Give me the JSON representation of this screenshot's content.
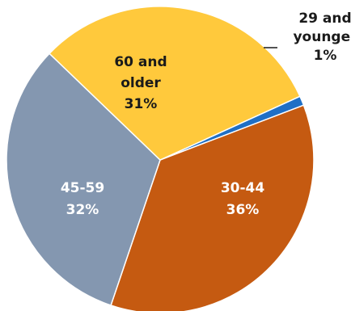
{
  "chart_data": {
    "type": "pie",
    "categories": [
      "29 and younger",
      "30-44",
      "45-59",
      "60 and older"
    ],
    "values": [
      1,
      36,
      32,
      31
    ],
    "colors": [
      "#1f6fc5",
      "#c55a11",
      "#8497b0",
      "#ffc93c"
    ],
    "slices": [
      {
        "lines": [
          "29 and",
          "younger",
          "1%"
        ],
        "label_color": "#1a1a1a",
        "label_position": "outside-top-right with leader line"
      },
      {
        "lines": [
          "30-44",
          "36%"
        ],
        "label_color": "#ffffff",
        "label_position": "inside"
      },
      {
        "lines": [
          "45-59",
          "32%"
        ],
        "label_color": "#ffffff",
        "label_position": "inside"
      },
      {
        "lines": [
          "60 and",
          "older",
          "31%"
        ],
        "label_color": "#1a1a1a",
        "label_position": "inside"
      }
    ],
    "title": "",
    "legend": "none"
  }
}
